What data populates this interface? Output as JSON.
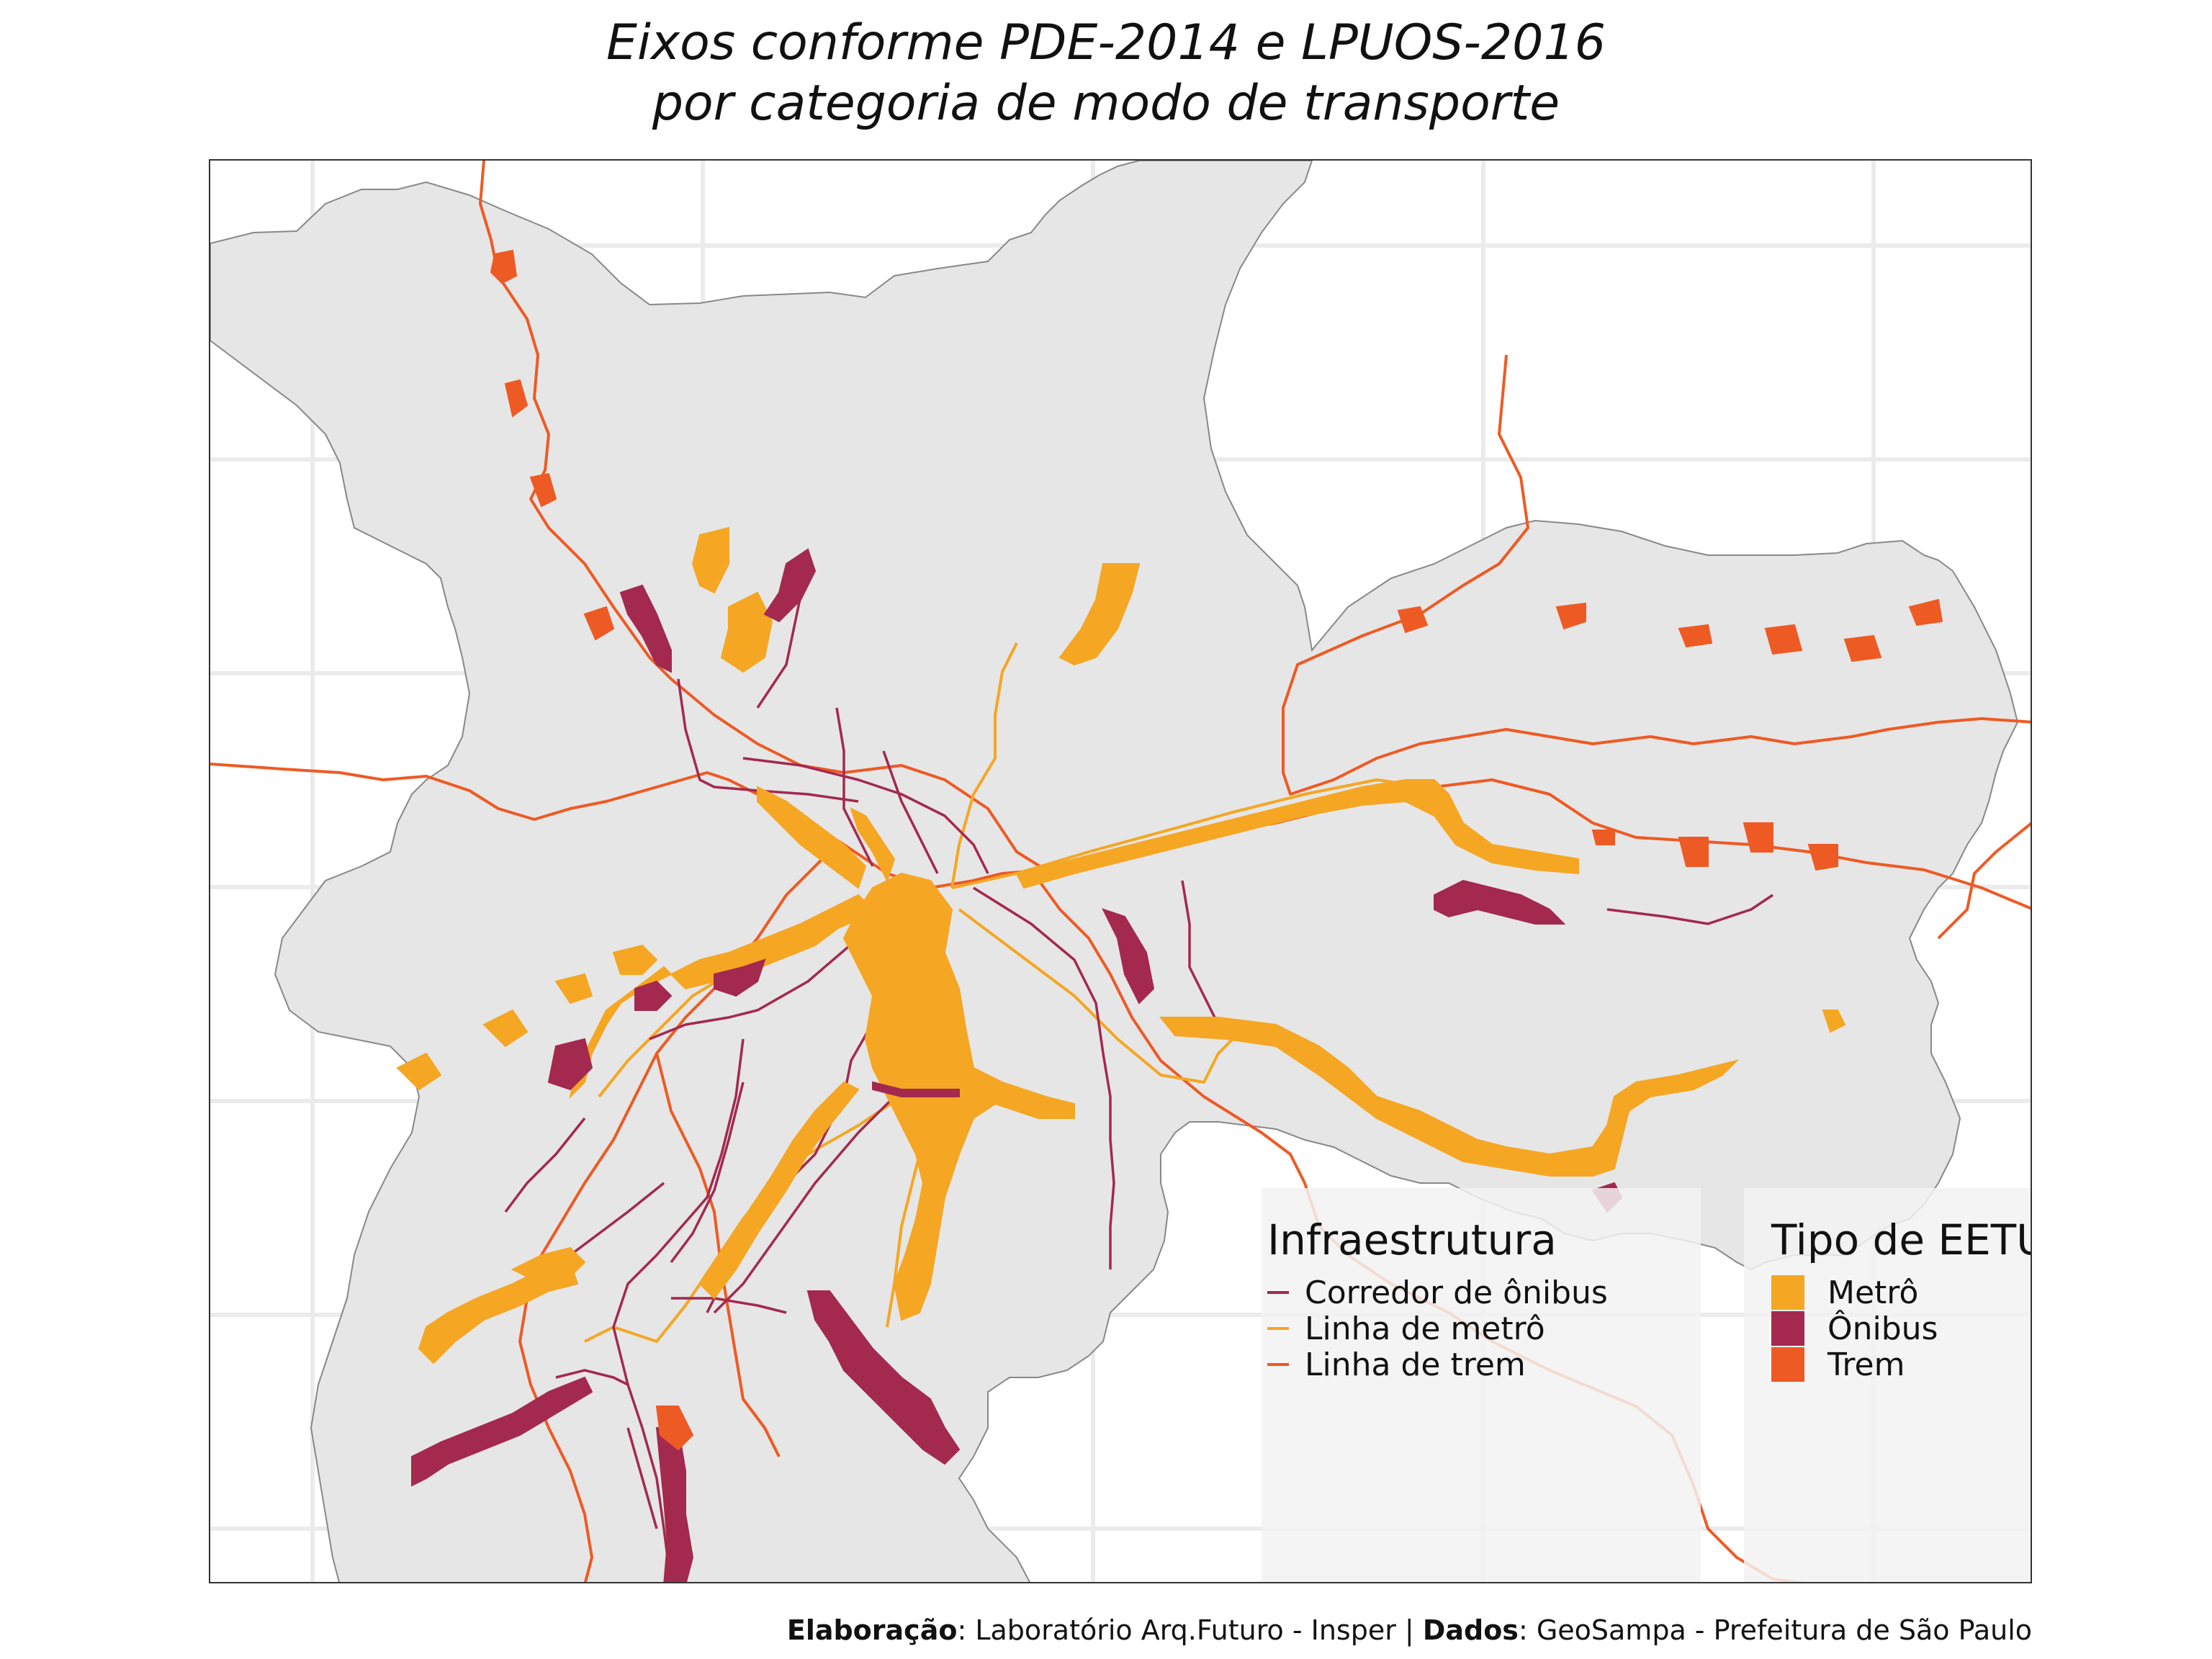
{
  "title": {
    "line1": "Eixos conforme PDE-2014 e LPUOS-2016",
    "line2": "por categoria de modo de transporte"
  },
  "legend_infra": {
    "title": "Infraestrutura",
    "items": [
      {
        "label": "Corredor de ônibus",
        "color": "#A3294F"
      },
      {
        "label": "Linha de metrô",
        "color": "#F5A623"
      },
      {
        "label": "Linha de trem",
        "color": "#EE5A24"
      }
    ]
  },
  "legend_eetu": {
    "title": "Tipo de EETU",
    "items": [
      {
        "label": "Metrô",
        "color": "#F5A623"
      },
      {
        "label": "Ônibus",
        "color": "#A3294F"
      },
      {
        "label": "Trem",
        "color": "#EE5A24"
      }
    ]
  },
  "credit": {
    "elab_label": "Elaboração",
    "elab_value": ": Laboratório Arq.Futuro - Insper | ",
    "data_label": "Dados",
    "data_value": ": GeoSampa - Prefeitura de São Paulo"
  },
  "colors": {
    "municipality_fill": "#E6E6E6",
    "grid": "#EBEBEB",
    "metro": "#F5A623",
    "bus": "#A3294F",
    "train": "#EE5A24"
  }
}
